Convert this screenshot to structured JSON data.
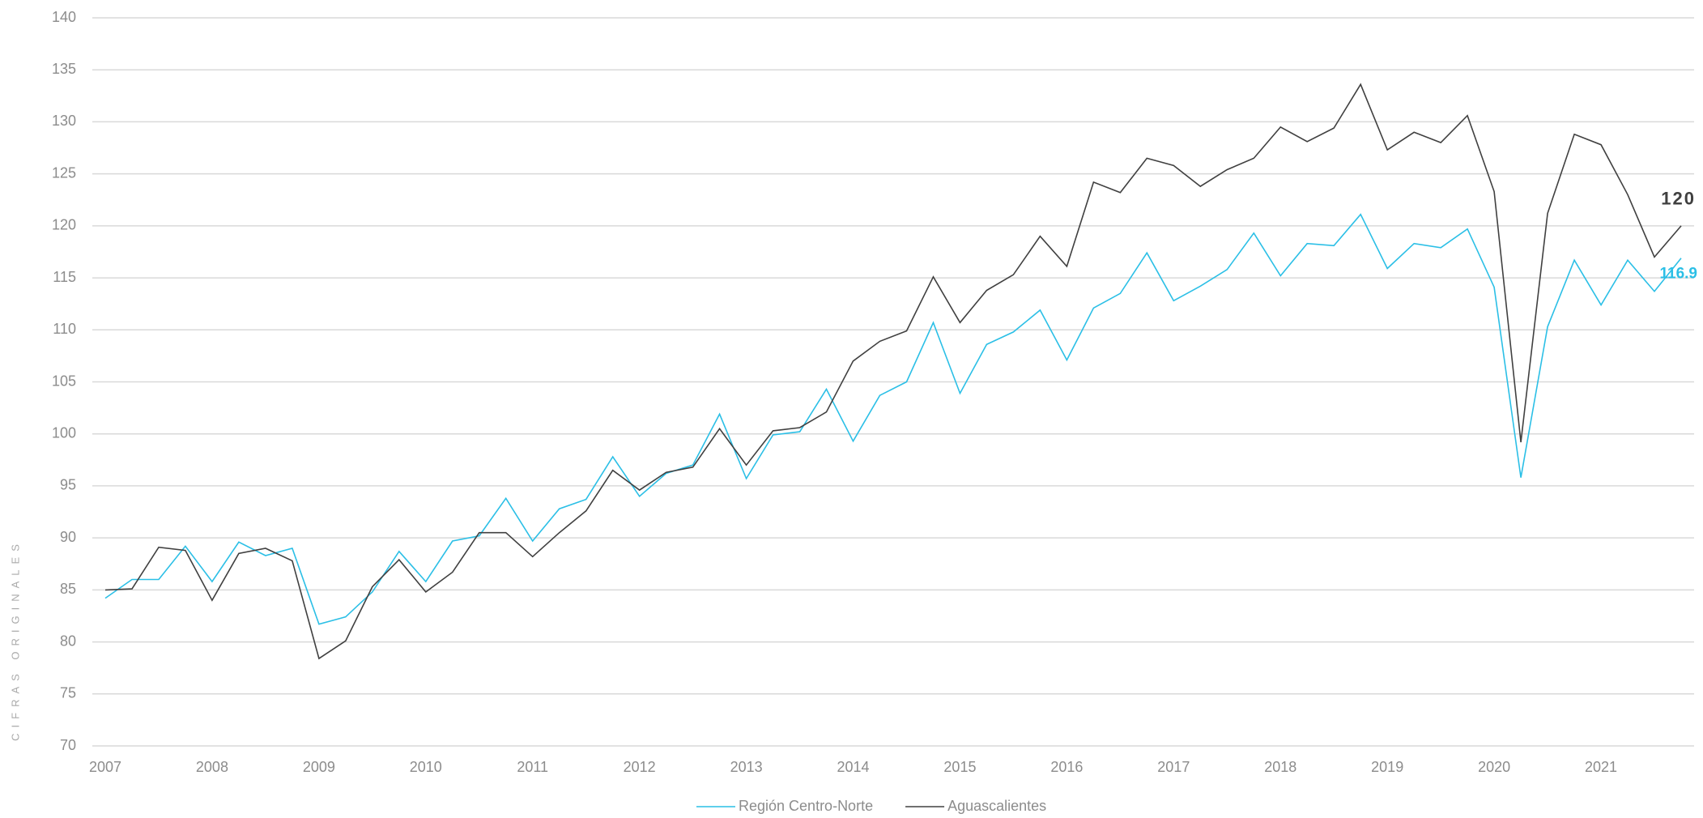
{
  "chart_data": {
    "type": "line",
    "y_label": "CIFRAS ORIGINALES",
    "categories": [
      "2007",
      null,
      null,
      null,
      "2008",
      null,
      null,
      null,
      "2009",
      null,
      null,
      null,
      "2010",
      null,
      null,
      null,
      "2011",
      null,
      null,
      null,
      "2012",
      null,
      null,
      null,
      "2013",
      null,
      null,
      null,
      "2014",
      null,
      null,
      null,
      "2015",
      null,
      null,
      null,
      "2016",
      null,
      null,
      null,
      "2017",
      null,
      null,
      null,
      "2018",
      null,
      null,
      null,
      "2019",
      null,
      null,
      null,
      "2020",
      null,
      null,
      null,
      "2021",
      null,
      null,
      null
    ],
    "series": [
      {
        "name": "Región Centro-Norte",
        "color": "#2bbfe6",
        "show_last_value": true,
        "values": [
          84.2,
          86,
          86,
          89.2,
          85.8,
          89.6,
          88.3,
          89,
          81.7,
          82.4,
          84.8,
          88.7,
          85.8,
          89.7,
          90.2,
          93.8,
          89.7,
          92.8,
          93.7,
          97.8,
          94,
          96.2,
          97,
          101.9,
          95.7,
          99.9,
          100.2,
          104.3,
          99.3,
          103.7,
          105,
          110.7,
          103.9,
          108.6,
          109.8,
          111.9,
          107.1,
          112.1,
          113.5,
          117.4,
          112.8,
          114.2,
          115.8,
          119.3,
          115.2,
          118.3,
          118.1,
          121.1,
          115.9,
          118.3,
          117.9,
          119.7,
          114.1,
          95.8,
          110.3,
          116.7,
          112.4,
          116.7,
          113.7,
          116.9
        ]
      },
      {
        "name": "Aguascalientes",
        "color": "#404040",
        "show_last_value": true,
        "values": [
          85,
          85.1,
          89.1,
          88.8,
          84,
          88.5,
          89,
          87.8,
          78.4,
          80.1,
          85.3,
          87.9,
          84.8,
          86.7,
          90.5,
          90.5,
          88.2,
          90.5,
          92.6,
          96.5,
          94.6,
          96.3,
          96.8,
          100.5,
          97,
          100.3,
          100.6,
          102.1,
          107,
          108.9,
          109.9,
          115.1,
          110.7,
          113.8,
          115.3,
          119,
          116.1,
          124.2,
          123.2,
          126.5,
          125.8,
          123.8,
          125.4,
          126.5,
          129.5,
          128.1,
          129.4,
          133.6,
          127.3,
          129,
          128,
          130.6,
          123.3,
          99.2,
          121.2,
          128.8,
          127.8,
          123,
          117,
          120
        ]
      }
    ],
    "ylim": [
      70,
      140
    ],
    "yticks": [
      70,
      75,
      80,
      85,
      90,
      95,
      100,
      105,
      110,
      115,
      120,
      125,
      130,
      135,
      140
    ],
    "grid": true,
    "legend": "bottom"
  }
}
